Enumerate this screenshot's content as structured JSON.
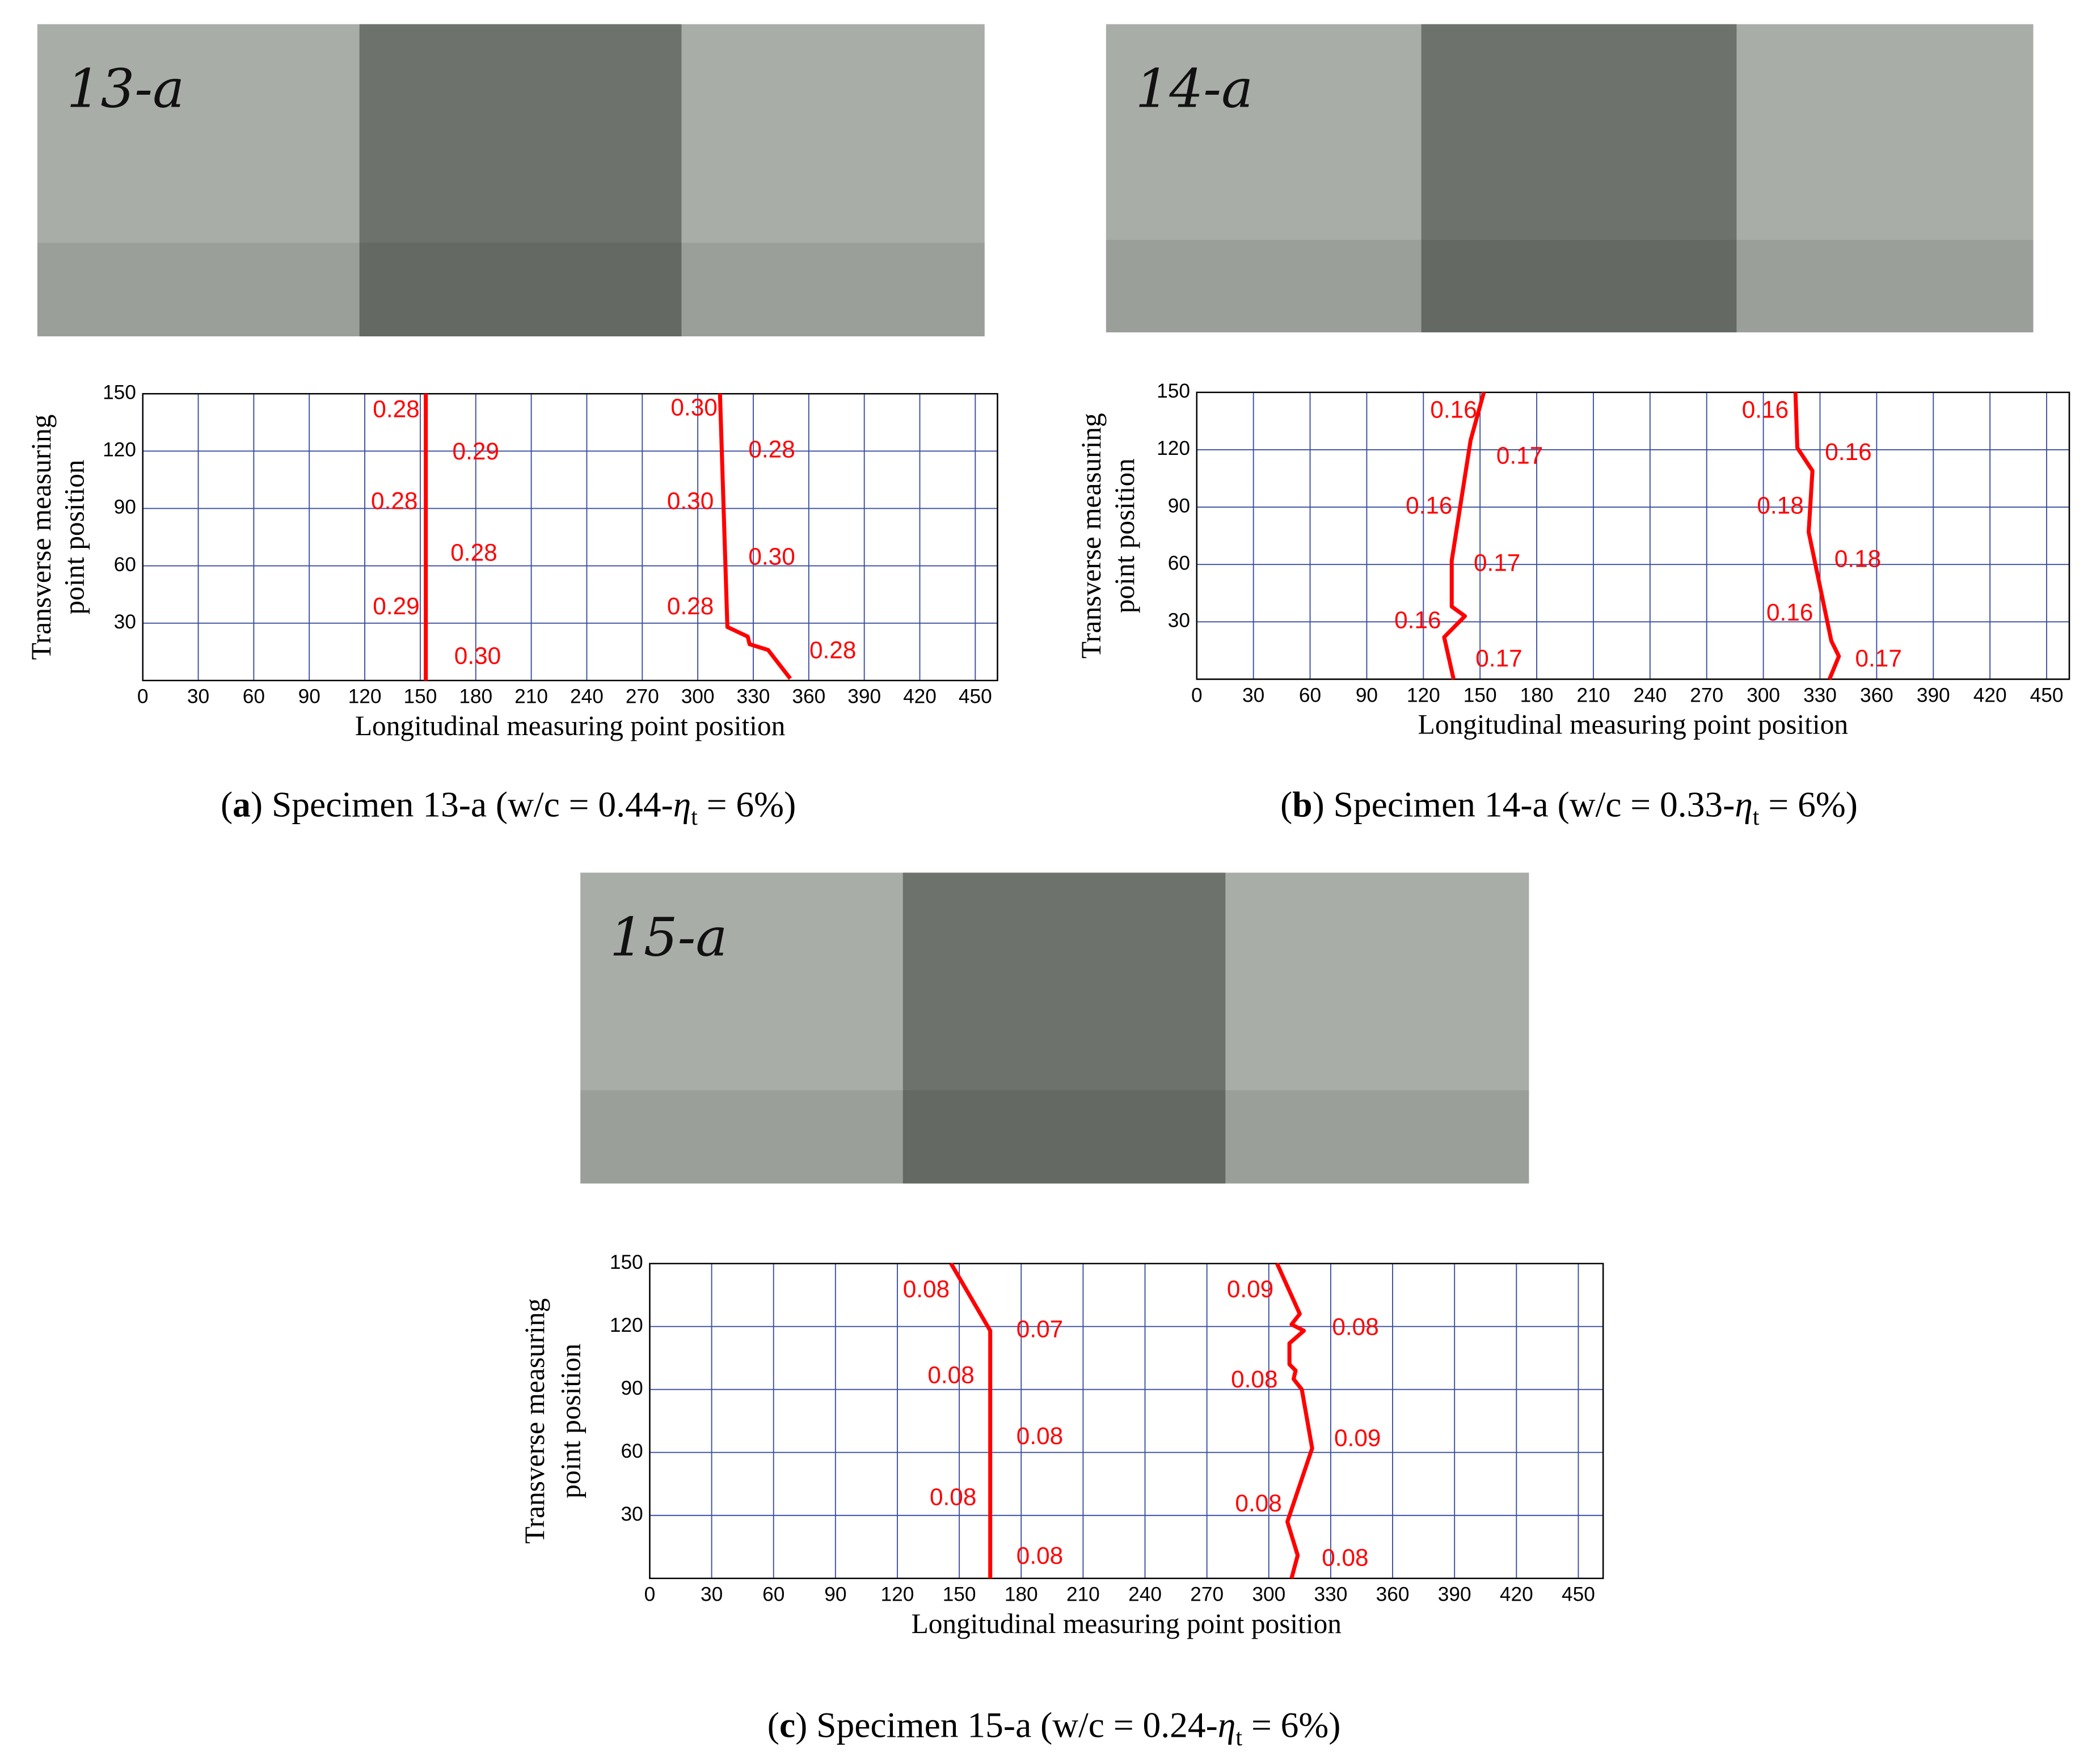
{
  "chart_data": [
    {
      "type": "line",
      "photo_label": "13-a",
      "caption": [
        "(",
        "a",
        ") Specimen 13-a (w/c = 0.44-",
        "η",
        "t",
        " = 6%)"
      ],
      "xlabel": "Longitudinal measuring point position",
      "ylabel": [
        "Transverse measuring",
        "point position"
      ],
      "xlim": [
        0,
        462
      ],
      "ylim": [
        0,
        150
      ],
      "xticks": [
        0,
        30,
        60,
        90,
        120,
        150,
        180,
        210,
        240,
        270,
        300,
        330,
        360,
        390,
        420,
        450
      ],
      "yticks": [
        30,
        60,
        90,
        120,
        150
      ],
      "grid": true,
      "grid_color": "#3a4ea0",
      "series": [
        {
          "color": "#ff0000",
          "x": [
            153,
            153
          ],
          "y": [
            0,
            150
          ]
        },
        {
          "color": "#ff0000",
          "x": [
            312,
            316,
            327,
            328,
            338,
            350
          ],
          "y": [
            150,
            28,
            23,
            19,
            16,
            1
          ]
        }
      ],
      "annotation_color": "#ff0000",
      "annotations": [
        {
          "text": "0.28",
          "x": 137,
          "y": 141
        },
        {
          "text": "0.29",
          "x": 180,
          "y": 119
        },
        {
          "text": "0.28",
          "x": 136,
          "y": 93
        },
        {
          "text": "0.28",
          "x": 179,
          "y": 66
        },
        {
          "text": "0.29",
          "x": 137,
          "y": 38
        },
        {
          "text": "0.30",
          "x": 181,
          "y": 12
        },
        {
          "text": "0.30",
          "x": 298,
          "y": 142
        },
        {
          "text": "0.28",
          "x": 340,
          "y": 120
        },
        {
          "text": "0.30",
          "x": 296,
          "y": 93
        },
        {
          "text": "0.30",
          "x": 340,
          "y": 64
        },
        {
          "text": "0.28",
          "x": 296,
          "y": 38
        },
        {
          "text": "0.28",
          "x": 373,
          "y": 15
        }
      ]
    },
    {
      "type": "line",
      "photo_label": "14-a",
      "caption": [
        "(",
        "b",
        ") Specimen 14-a (w/c = 0.33-",
        "η",
        "t",
        " = 6%)"
      ],
      "xlabel": "Longitudinal measuring point position",
      "ylabel": [
        "Transverse measuring",
        "point position"
      ],
      "xlim": [
        0,
        462
      ],
      "ylim": [
        0,
        150
      ],
      "xticks": [
        0,
        30,
        60,
        90,
        120,
        150,
        180,
        210,
        240,
        270,
        300,
        330,
        360,
        390,
        420,
        450
      ],
      "yticks": [
        30,
        60,
        90,
        120,
        150
      ],
      "grid": true,
      "grid_color": "#3a4ea0",
      "series": [
        {
          "color": "#ff0000",
          "x": [
            152,
            145,
            135,
            135,
            142,
            131,
            136
          ],
          "y": [
            150,
            125,
            62,
            38,
            33,
            22,
            0
          ]
        },
        {
          "color": "#ff0000",
          "x": [
            317,
            318,
            326,
            324,
            336,
            340,
            335
          ],
          "y": [
            150,
            121,
            109,
            77,
            20,
            12,
            0
          ]
        }
      ],
      "annotation_color": "#ff0000",
      "annotations": [
        {
          "text": "0.16",
          "x": 136,
          "y": 140
        },
        {
          "text": "0.17",
          "x": 171,
          "y": 116
        },
        {
          "text": "0.16",
          "x": 123,
          "y": 90
        },
        {
          "text": "0.17",
          "x": 159,
          "y": 60
        },
        {
          "text": "0.16",
          "x": 117,
          "y": 30
        },
        {
          "text": "0.17",
          "x": 160,
          "y": 10
        },
        {
          "text": "0.16",
          "x": 301,
          "y": 140
        },
        {
          "text": "0.16",
          "x": 345,
          "y": 118
        },
        {
          "text": "0.18",
          "x": 309,
          "y": 90
        },
        {
          "text": "0.18",
          "x": 350,
          "y": 62
        },
        {
          "text": "0.16",
          "x": 314,
          "y": 34
        },
        {
          "text": "0.17",
          "x": 361,
          "y": 10
        }
      ]
    },
    {
      "type": "line",
      "photo_label": "15-a",
      "caption": [
        "(",
        "c",
        ") Specimen 15-a (w/c = 0.24-",
        "η",
        "t",
        " = 6%)"
      ],
      "xlabel": "Longitudinal measuring point position",
      "ylabel": [
        "Transverse measuring",
        "point position"
      ],
      "xlim": [
        0,
        462
      ],
      "ylim": [
        0,
        150
      ],
      "xticks": [
        0,
        30,
        60,
        90,
        120,
        150,
        180,
        210,
        240,
        270,
        300,
        330,
        360,
        390,
        420,
        450
      ],
      "yticks": [
        30,
        60,
        90,
        120,
        150
      ],
      "grid": true,
      "grid_color": "#3a4ea0",
      "series": [
        {
          "color": "#ff0000",
          "x": [
            146,
            165,
            165
          ],
          "y": [
            150,
            118,
            0
          ]
        },
        {
          "color": "#ff0000",
          "x": [
            304,
            315,
            311,
            317,
            310,
            310,
            313,
            312,
            316,
            321,
            309,
            314,
            311
          ],
          "y": [
            150,
            126,
            121,
            118,
            112,
            102,
            99,
            95,
            90,
            62,
            27,
            11,
            0
          ]
        }
      ],
      "annotation_color": "#ff0000",
      "annotations": [
        {
          "text": "0.08",
          "x": 134,
          "y": 137
        },
        {
          "text": "0.07",
          "x": 189,
          "y": 118
        },
        {
          "text": "0.08",
          "x": 146,
          "y": 96
        },
        {
          "text": "0.08",
          "x": 189,
          "y": 67
        },
        {
          "text": "0.08",
          "x": 147,
          "y": 38
        },
        {
          "text": "0.08",
          "x": 189,
          "y": 10
        },
        {
          "text": "0.09",
          "x": 291,
          "y": 137
        },
        {
          "text": "0.08",
          "x": 342,
          "y": 119
        },
        {
          "text": "0.08",
          "x": 293,
          "y": 94
        },
        {
          "text": "0.09",
          "x": 343,
          "y": 66
        },
        {
          "text": "0.08",
          "x": 295,
          "y": 35
        },
        {
          "text": "0.08",
          "x": 337,
          "y": 9
        }
      ]
    }
  ]
}
